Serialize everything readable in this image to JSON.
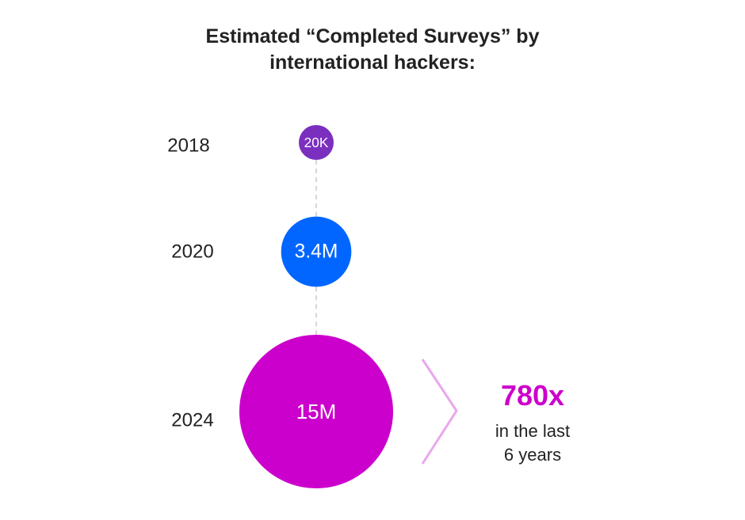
{
  "title": {
    "line1": "Estimated “Completed Surveys” by",
    "line2": "international hackers:"
  },
  "chart_data": {
    "type": "bubble",
    "categories": [
      "2018",
      "2020",
      "2024"
    ],
    "values": [
      20000,
      3400000,
      15000000
    ],
    "labels": [
      "20K",
      "3.4M",
      "15M"
    ],
    "colors": [
      "#7b2fbf",
      "#0066ff",
      "#cc00cc"
    ]
  },
  "callout": {
    "value": "780x",
    "line1": "in the last",
    "line2": "6 years",
    "accent": "#cc00cc",
    "chevron_color": "#eaa6ee"
  },
  "connector_color": "#d6d6d6"
}
